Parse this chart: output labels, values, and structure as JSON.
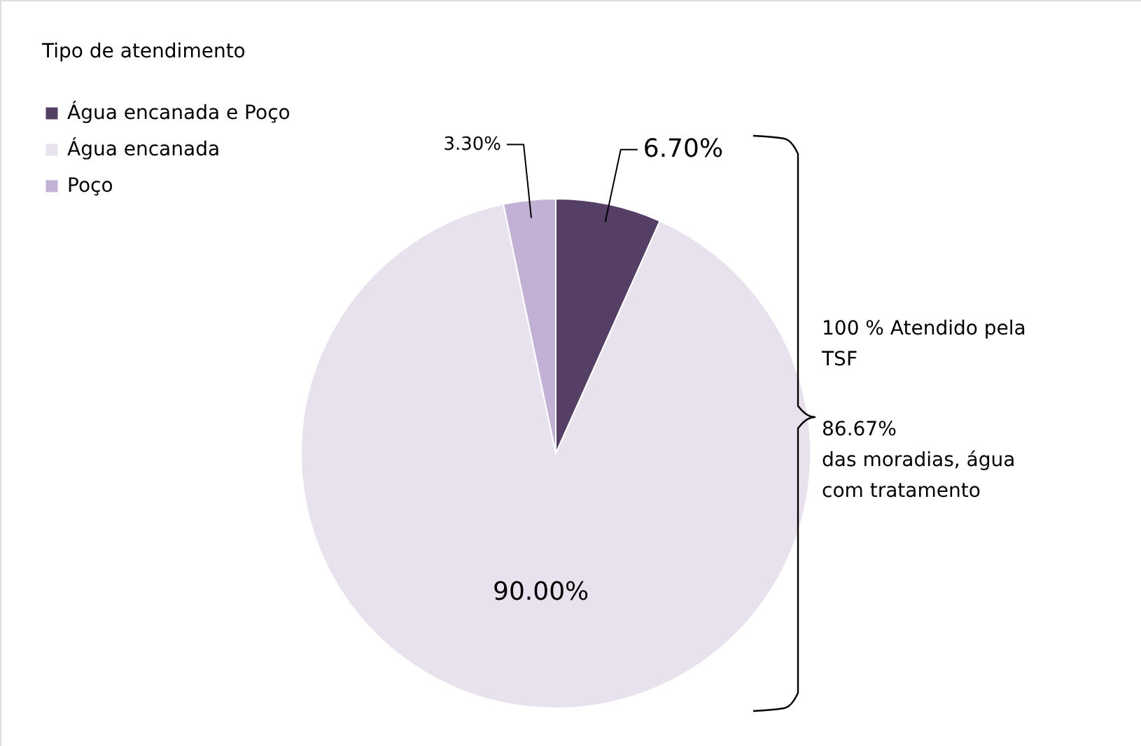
{
  "chart_data": {
    "type": "pie",
    "legend_title": "Tipo de atendimento",
    "categories": [
      "Água encanada e Poço",
      "Água encanada",
      "Poço"
    ],
    "values": [
      6.7,
      90.0,
      3.3
    ],
    "colors": [
      "#553f65",
      "#e8e1ee",
      "#c3b0d5"
    ],
    "value_labels": [
      "6.70%",
      "90.00%",
      "3.30%"
    ],
    "legend": "top left",
    "annotations": [
      "100 % Atendido pela\nTSF",
      "86.67%\ndas moradias, água\ncom tratamento"
    ]
  }
}
